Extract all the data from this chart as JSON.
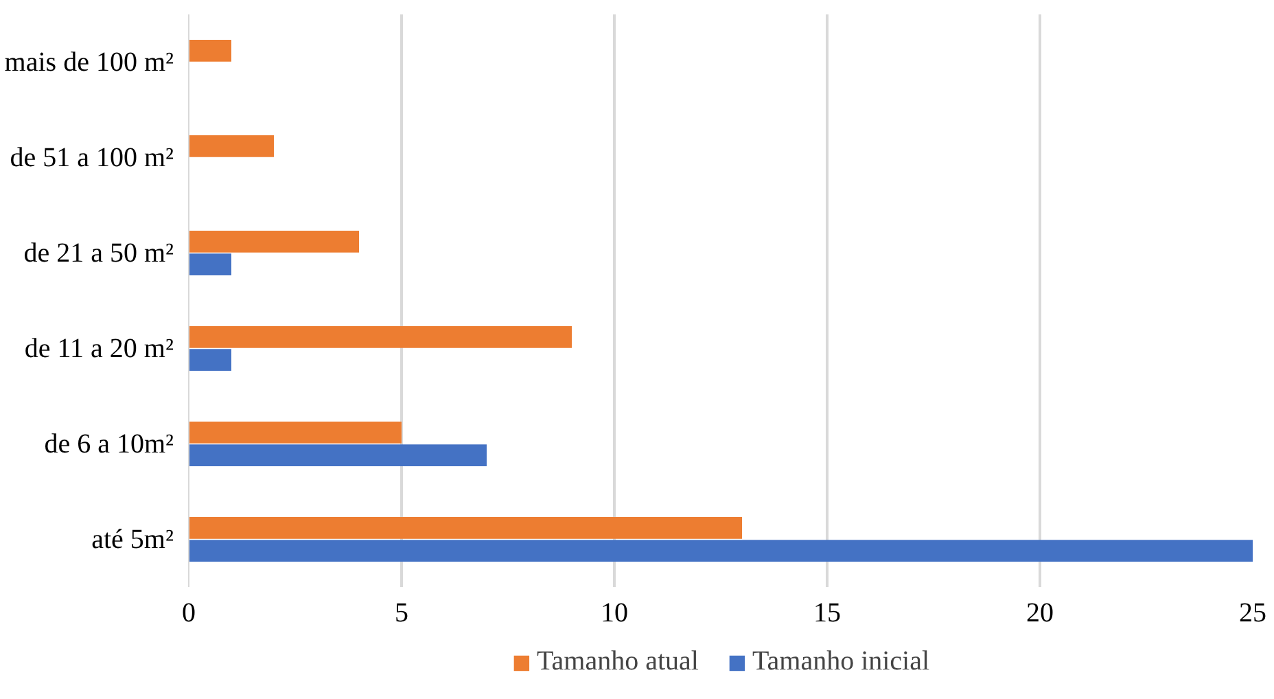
{
  "chart_data": {
    "type": "bar",
    "orientation": "horizontal",
    "categories": [
      "mais de 100 m²",
      "de 51 a 100 m²",
      "de 21 a 50 m²",
      "de 11 a 20 m²",
      "de 6 a 10m²",
      "até 5m²"
    ],
    "series": [
      {
        "name": "Tamanho atual",
        "color": "#ed7d31",
        "values": [
          1,
          2,
          4,
          9,
          5,
          13
        ]
      },
      {
        "name": "Tamanho inicial",
        "color": "#4472c4",
        "values": [
          0,
          0,
          1,
          1,
          7,
          25
        ]
      }
    ],
    "xlim": [
      0,
      25
    ],
    "xticks": [
      0,
      5,
      10,
      15,
      20,
      25
    ],
    "grid": "x",
    "legend": "bottom"
  }
}
